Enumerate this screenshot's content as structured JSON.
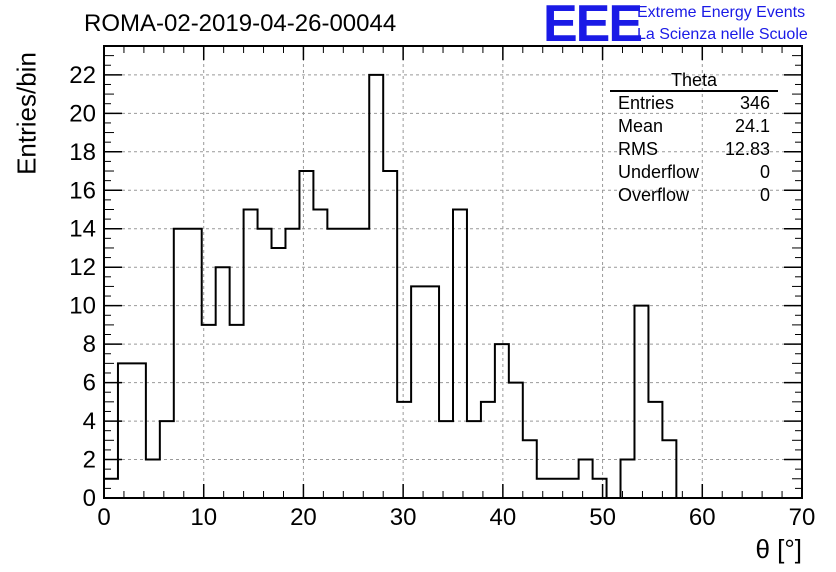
{
  "title": "ROMA-02-2019-04-26-00044",
  "logo": {
    "mark": "EEE",
    "line1": "Extreme Energy Events",
    "line2": "La Scienza nelle Scuole",
    "color": "#1a1ae6"
  },
  "stats": {
    "name": "Theta",
    "rows": [
      {
        "label": "Entries",
        "value": "346"
      },
      {
        "label": "Mean",
        "value": "24.1"
      },
      {
        "label": "RMS",
        "value": "12.83"
      },
      {
        "label": "Underflow",
        "value": "0"
      },
      {
        "label": "Overflow",
        "value": "0"
      }
    ]
  },
  "chart_data": {
    "type": "histogram",
    "xlabel": "θ [°]",
    "ylabel": "Entries/bin",
    "xlim": [
      0,
      70
    ],
    "ylim": [
      0,
      23.5
    ],
    "xticks": [
      0,
      10,
      20,
      30,
      40,
      50,
      60,
      70
    ],
    "yticks": [
      0,
      2,
      4,
      6,
      8,
      10,
      12,
      14,
      16,
      18,
      20,
      22
    ],
    "grid": true,
    "bin_edges": [
      0,
      1.4,
      2.8,
      4.2,
      5.6,
      7.0,
      8.4,
      9.8,
      11.2,
      12.6,
      14.0,
      15.4,
      16.8,
      18.2,
      19.6,
      21.0,
      22.4,
      23.8,
      25.2,
      26.6,
      28.0,
      29.4,
      30.8,
      32.2,
      33.6,
      35.0,
      36.4,
      37.8,
      39.2,
      40.6,
      42.0,
      43.4,
      44.8,
      46.2,
      47.6,
      49.0,
      50.4,
      51.8,
      53.2,
      54.6,
      56.0,
      57.4
    ],
    "counts": [
      1,
      7,
      7,
      2,
      4,
      14,
      14,
      9,
      12,
      9,
      15,
      14,
      13,
      14,
      17,
      15,
      14,
      14,
      14,
      22,
      17,
      5,
      11,
      11,
      4,
      15,
      4,
      5,
      8,
      6,
      3,
      1,
      1,
      1,
      2,
      1,
      0,
      2,
      10,
      5,
      3
    ]
  }
}
